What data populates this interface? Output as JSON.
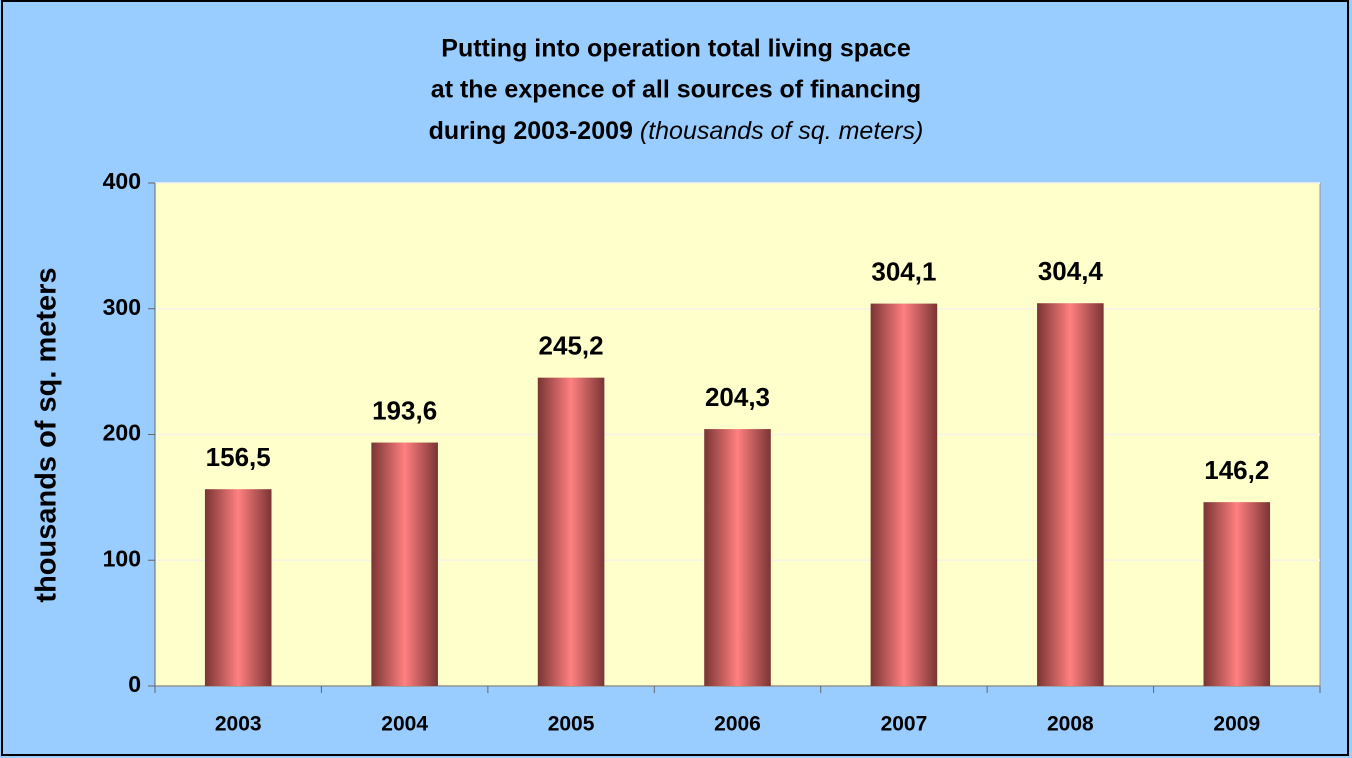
{
  "chart_data": {
    "type": "bar",
    "title": [
      "Putting into operation total living space",
      "at the expence of all sources of financing",
      "during 2003-2009"
    ],
    "title_note": "(thousands of sq. meters)",
    "y_label": "thousands of sq. meters",
    "categories": [
      "2003",
      "2004",
      "2005",
      "2006",
      "2007",
      "2008",
      "2009"
    ],
    "values": [
      156.5,
      193.6,
      245.2,
      204.3,
      304.1,
      304.4,
      146.2
    ],
    "value_labels": [
      "156,5",
      "193,6",
      "245,2",
      "204,3",
      "304,1",
      "304,4",
      "146,2"
    ],
    "color": "#ff8080",
    "ylim": [
      0,
      400
    ],
    "yticks": [
      0,
      100,
      200,
      300,
      400
    ],
    "grid": true
  }
}
